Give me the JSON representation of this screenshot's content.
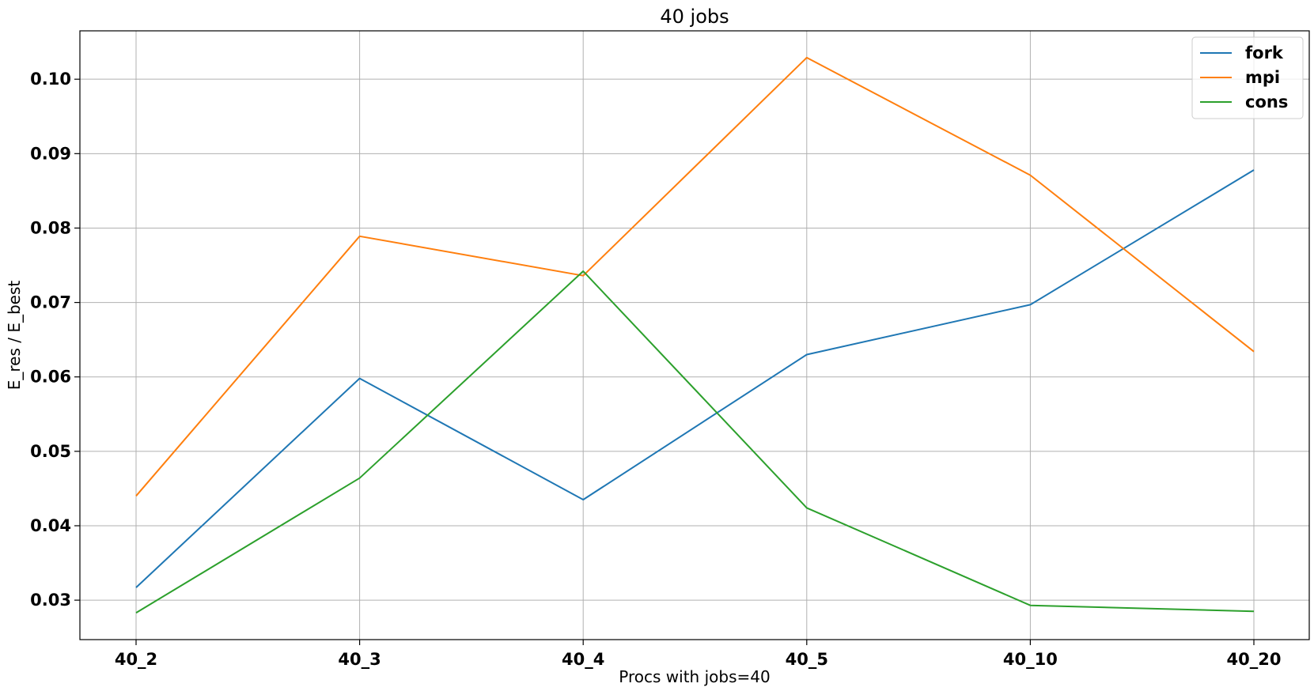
{
  "chart_data": {
    "type": "line",
    "title": "40 jobs",
    "xlabel": "Procs with jobs=40",
    "ylabel": "E_res / E_best",
    "categories": [
      "40_2",
      "40_3",
      "40_4",
      "40_5",
      "40_10",
      "40_20"
    ],
    "series": [
      {
        "name": "fork",
        "color": "#1f77b4",
        "values": [
          0.0317,
          0.0598,
          0.0435,
          0.063,
          0.0697,
          0.0878
        ]
      },
      {
        "name": "mpi",
        "color": "#ff7f0e",
        "values": [
          0.044,
          0.0789,
          0.0736,
          0.1029,
          0.0871,
          0.0634
        ]
      },
      {
        "name": "cons",
        "color": "#2ca02c",
        "values": [
          0.0283,
          0.0464,
          0.0742,
          0.0424,
          0.0293,
          0.0285
        ]
      }
    ],
    "yticks": [
      0.03,
      0.04,
      0.05,
      0.06,
      0.07,
      0.08,
      0.09,
      0.1
    ],
    "ytick_labels": [
      "0.03",
      "0.04",
      "0.05",
      "0.06",
      "0.07",
      "0.08",
      "0.09",
      "0.10"
    ],
    "ylim": [
      0.0247,
      0.1065
    ],
    "grid": true,
    "legend_position": "top-right"
  }
}
